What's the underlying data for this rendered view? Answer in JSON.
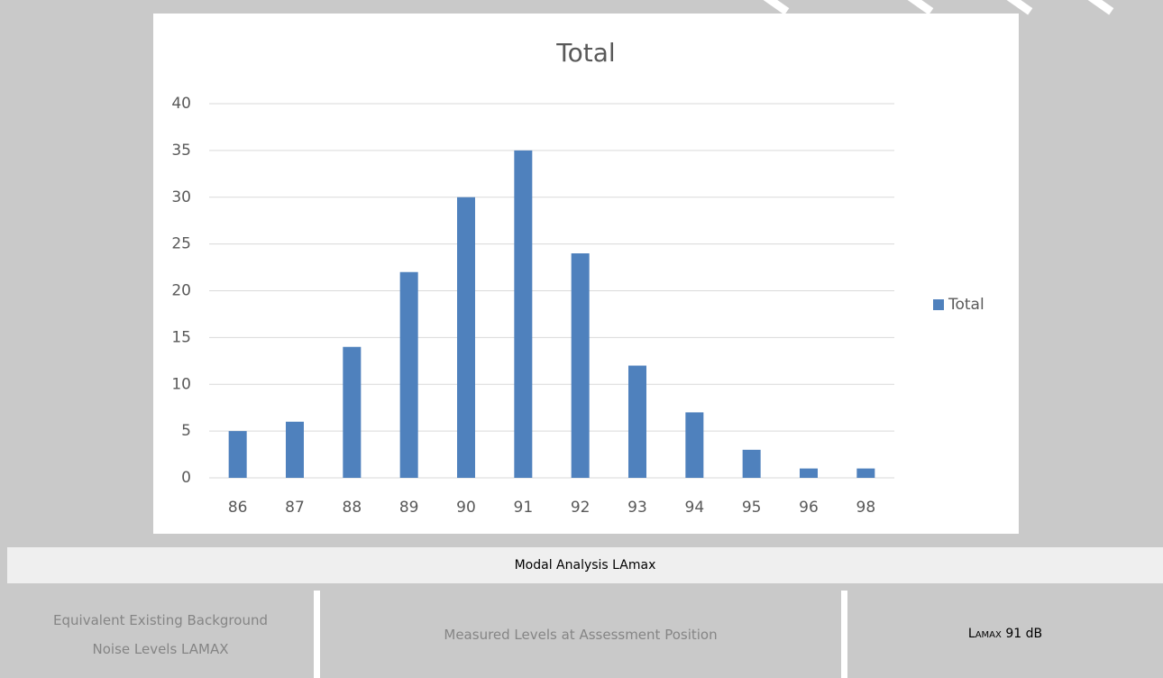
{
  "chart_data": {
    "type": "bar",
    "title": "Total",
    "categories": [
      "86",
      "87",
      "88",
      "89",
      "90",
      "91",
      "92",
      "93",
      "94",
      "95",
      "96",
      "98"
    ],
    "series": [
      {
        "name": "Total",
        "color": "#4f81bd",
        "values": [
          5,
          6,
          14,
          22,
          30,
          35,
          24,
          12,
          7,
          3,
          1,
          1
        ]
      }
    ],
    "ylim": [
      0,
      40
    ],
    "yticks": [
      0,
      5,
      10,
      15,
      20,
      25,
      30,
      35,
      40
    ],
    "grid": true,
    "legend": "right"
  },
  "caption": "Modal Analysis LAmax",
  "table": {
    "cells": [
      "Equivalent Existing Background Noise Levels LAMAX",
      "Measured Levels at Assessment Position"
    ],
    "result": {
      "symbol": "L",
      "subscript": "AMAX",
      "value": "91 dB"
    }
  }
}
